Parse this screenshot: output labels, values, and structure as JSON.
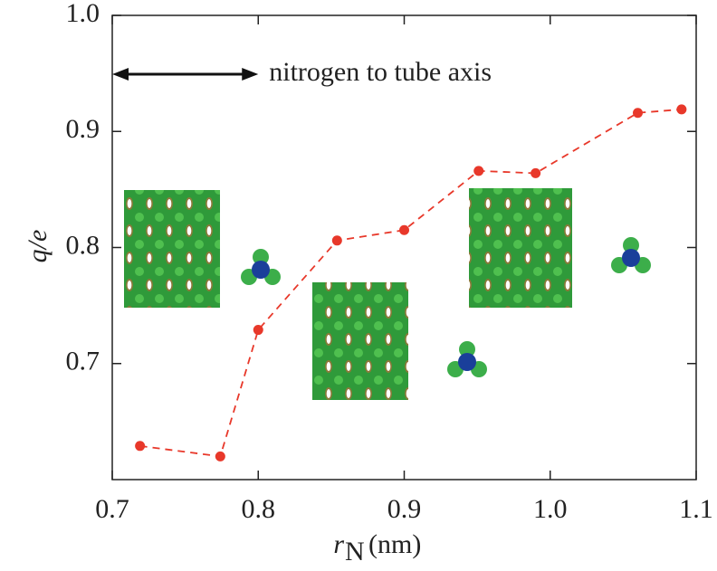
{
  "chart_data": {
    "type": "line",
    "x_label_symbol": "r",
    "x_label_subscript": "N",
    "x_label_unit": "(nm)",
    "y_label": "q/e",
    "annotation": "nitrogen to tube axis",
    "x": [
      0.719,
      0.774,
      0.8,
      0.854,
      0.9,
      0.951,
      0.99,
      1.06,
      1.09
    ],
    "series": [
      {
        "color": "#e8382a",
        "values": [
          0.629,
          0.62,
          0.729,
          0.806,
          0.815,
          0.866,
          0.864,
          0.916,
          0.919
        ]
      }
    ],
    "xlim": [
      0.7,
      1.1
    ],
    "xticks": [
      0.7,
      0.8,
      0.9,
      {
        "value": 1.0,
        "label": "1.0"
      },
      1.1
    ],
    "ylim": [
      0.6,
      1.0
    ],
    "yticks": [
      0.7,
      0.8,
      0.9,
      {
        "value": 1.0,
        "label": "1.0"
      }
    ],
    "grid": false
  }
}
